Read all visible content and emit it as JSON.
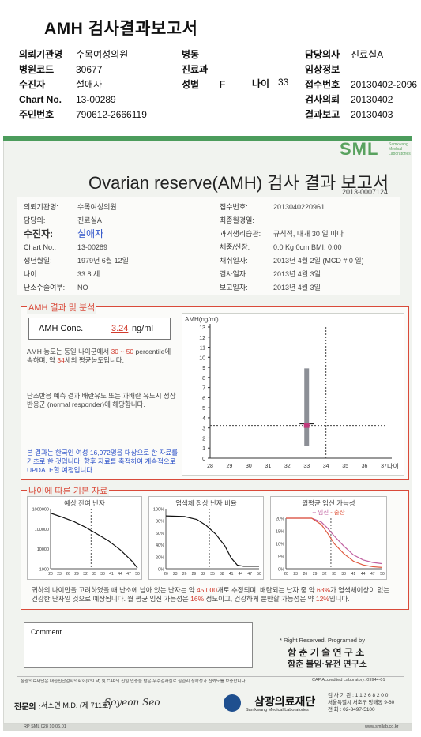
{
  "header": {
    "title": "AMH 검사결과보고서",
    "fields": [
      {
        "label": "의뢰기관명",
        "value": "수목여성의원"
      },
      {
        "label": "병원코드",
        "value": "30677"
      },
      {
        "label": "수진자",
        "value": "설애자"
      },
      {
        "label": "Chart No.",
        "value": "13-00289"
      },
      {
        "label": "주민번호",
        "value": "790612-2666119"
      }
    ],
    "mid_fields": [
      {
        "label": "병동",
        "value": ""
      },
      {
        "label": "진료과",
        "value": ""
      },
      {
        "label": "성별",
        "value": "F"
      }
    ],
    "age_label": "나이",
    "age_value": "33",
    "right_fields": [
      {
        "label": "담당의사",
        "value": "진료실A"
      },
      {
        "label": "임상정보",
        "value": ""
      },
      {
        "label": "접수번호",
        "value": "20130402-2096"
      },
      {
        "label": "검사의뢰",
        "value": "20130402"
      },
      {
        "label": "결과보고",
        "value": "20130403"
      }
    ]
  },
  "report": {
    "logo": "SML",
    "logo_sub": "Samkwang Medical Laboratories",
    "title": "Ovarian reserve(AMH) 검사 결과 보고서",
    "doc_no": "2013-0007124",
    "left_info": [
      {
        "label": "의뢰기관명:",
        "value": "수목여성의원"
      },
      {
        "label": "담당의:",
        "value": "진료실A"
      },
      {
        "label": "수진자:",
        "value": "설애자"
      },
      {
        "label": "Chart No.:",
        "value": "13-00289"
      },
      {
        "label": "생년월일:",
        "value": "1979년 6월 12일"
      },
      {
        "label": "나이:",
        "value": "33.8 세"
      },
      {
        "label": "난소수술여부:",
        "value": "NO"
      }
    ],
    "right_info": [
      {
        "label": "접수번호:",
        "value": "2013040220961"
      },
      {
        "label": "최종월경일:",
        "value": ""
      },
      {
        "label": "과거생리습관:",
        "value": "규칙적, 대개   30 일 마다"
      },
      {
        "label": "체중/신장:",
        "value": "0.0 Kg      0cm    BMI:   0.00"
      },
      {
        "label": "채취일자:",
        "value": "2013년 4월 2일    (MCD # 0 일)"
      },
      {
        "label": "검사일자:",
        "value": "2013년 4월 3일"
      },
      {
        "label": "보고일자:",
        "value": "2013년 4월 3일"
      }
    ],
    "analysis": {
      "section_title": "AMH 결과 및 분석",
      "conc_label": "AMH Conc.",
      "conc_value": "3.24",
      "conc_unit": "ng/ml",
      "text1_a": "AMH 농도는 동일 나이군에서",
      "text1_pct": "30 ~ 50",
      "text1_b": "percentile에 속하며, 약",
      "text1_age": "34",
      "text1_c": "세의 평균농도입니다.",
      "text2": "난소반응 예측 결과 배란유도 또는 과배란 유도시 정상반응군 (normal responder)에 해당합니다.",
      "note": "본 결과는 한국인 여성 16,972명을 대상으로 한 자료를 기초로 한 것입니다. 향후 자료를 축적하여 계속적으로 UPDATE할 예정입니다."
    },
    "basic": {
      "section_title": "나이에 따른 기본 자료",
      "chart1_title": "예상 잔여 난자",
      "chart2_title": "염색체 정상 난자 비율",
      "chart3_title": "월평균 임신 가능성",
      "chart3_leg1": "-- 임신",
      "chart3_leg2": "- 출산",
      "summary_a": "귀하의 나이만을 고려하였을 때 난소에 남아 있는 난자는 약",
      "summary_eggs": "45,000",
      "summary_b": "개로 추정되며, 배란되는 난자 중 약",
      "summary_pct": "63%",
      "summary_c": "가 염색체이상이 없는 건강한 난자일 것으로 예상됩니다. 월 평균 임신 가능성은",
      "summary_preg": "16%",
      "summary_d": "정도이고, 건강하게 분만할 가능성은 약",
      "summary_birth": "12%",
      "summary_e": "입니다."
    },
    "comment_label": "Comment",
    "rights": "* Right Reserved. Programed by",
    "org1": "함 춘   기 술   연 구 소",
    "org2": "함춘 불임·유전 연구소",
    "footer_note": "삼광의료재단은 대한진단검사의학회(KSLM) 및 CAP의 신임 인증을 받은 우수검사실로 질관리 정확성과 신뢰도를 보증합니다.",
    "cap": "CAP  Accredited  Laboratory:  09944-01",
    "specialist_label": "전문의 :",
    "specialist": "서소연 M.D. (제 711호)",
    "signature": "Soyeon Seo",
    "foundation": "삼광의료재단",
    "foundation_sub": "Samkwang Medical Laboratories",
    "contact1": "검 사 기 관 : 1 1 3 6 8 2 0 0",
    "contact2": "서울특별시 서초구 방배동 9-60",
    "contact3": "전  화 : 02-3497-5100",
    "form_code": "RP  SML  028  10.06.01",
    "website": "www.smllab.co.kr"
  },
  "chart_data": [
    {
      "type": "scatter",
      "title": "",
      "ylabel": "AMH(ng/ml)",
      "xlabel": "나이",
      "xlim": [
        28,
        37
      ],
      "ylim": [
        0,
        13
      ],
      "x_ticks": [
        28,
        29,
        30,
        31,
        32,
        33,
        34,
        35,
        36,
        37
      ],
      "y_ticks": [
        0,
        1,
        2,
        3,
        4,
        5,
        6,
        7,
        8,
        9,
        10,
        11,
        12,
        13
      ],
      "range_bar": {
        "x": 33,
        "low": 1.2,
        "high": 8.9
      },
      "point": {
        "x": 33,
        "y": 3.24
      },
      "mean_tick": {
        "x": 33,
        "y": 3.4
      },
      "ref_x": 34,
      "ref_y": 3.24
    },
    {
      "type": "line",
      "title": "예상 잔여 난자",
      "log_scale": true,
      "y_ticks": [
        "1000000",
        "100000",
        "10000",
        "1000"
      ],
      "x_ticks": [
        20,
        23,
        26,
        29,
        32,
        35,
        38,
        41,
        44,
        47,
        50
      ],
      "x": [
        20,
        24,
        28,
        32,
        36,
        40,
        44,
        48,
        50
      ],
      "values": [
        600000,
        380000,
        230000,
        120000,
        55000,
        25000,
        9000,
        2500,
        1100
      ],
      "ref_x": 34
    },
    {
      "type": "line",
      "title": "염색체 정상 난자 비율",
      "y_ticks": [
        "100%",
        "80%",
        "60%",
        "40%",
        "20%",
        "0%"
      ],
      "x_ticks": [
        20,
        23,
        26,
        29,
        32,
        35,
        38,
        41,
        44,
        47,
        50
      ],
      "x": [
        20,
        26,
        30,
        33,
        36,
        39,
        41,
        43,
        45,
        50
      ],
      "values": [
        88,
        87,
        82,
        72,
        58,
        38,
        18,
        6,
        4,
        4
      ],
      "ref_x": 34
    },
    {
      "type": "line",
      "title": "월평균 임신 가능성",
      "y_ticks": [
        "20%",
        "15%",
        "10%",
        "5%",
        "0%"
      ],
      "x_ticks": [
        20,
        23,
        26,
        29,
        32,
        35,
        38,
        41,
        44,
        47,
        50
      ],
      "x": [
        20,
        28,
        31,
        33,
        35,
        38,
        41,
        44,
        47,
        50
      ],
      "series": [
        {
          "name": "임신",
          "color": "#c060a0",
          "values": [
            20,
            20,
            18.5,
            16,
            13,
            9,
            5.5,
            3.5,
            2.5,
            2
          ]
        },
        {
          "name": "출산",
          "color": "#e05a40",
          "values": [
            20,
            20,
            17.5,
            14,
            10,
            6,
            3,
            1.5,
            0.8,
            0.5
          ]
        }
      ],
      "ref_x": 34
    }
  ]
}
